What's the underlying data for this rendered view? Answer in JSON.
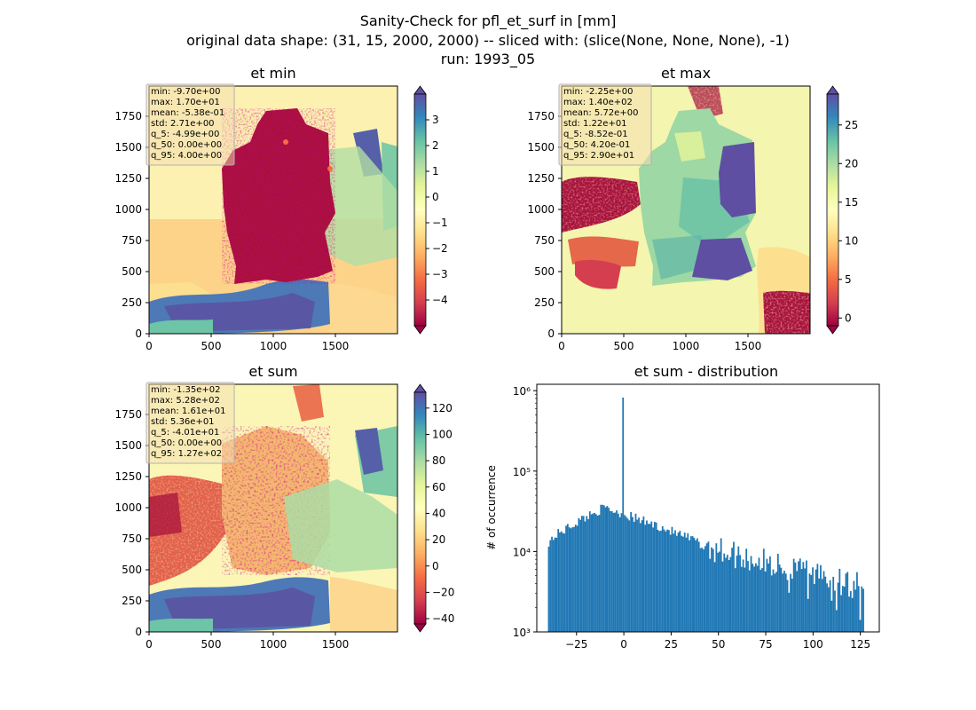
{
  "figure": {
    "suptitle": [
      "Sanity-Check for pfl_et_surf in [mm]",
      "original data shape: (31, 15, 2000, 2000) -- sliced with: (slice(None, None, None), -1)",
      "run: 1993_05"
    ]
  },
  "colormap": {
    "name": "Spectral",
    "stops": [
      "#9e0142",
      "#d53e4f",
      "#f46d43",
      "#fdae61",
      "#fee08b",
      "#ffffbf",
      "#e6f598",
      "#abdda4",
      "#66c2a5",
      "#3288bd",
      "#5e4fa2"
    ]
  },
  "chart_data": [
    {
      "type": "heatmap",
      "title": "et min",
      "xlim": [
        0,
        2000
      ],
      "ylim": [
        0,
        2000
      ],
      "xticks": [
        0,
        500,
        1000,
        1500
      ],
      "yticks": [
        0,
        250,
        500,
        750,
        1000,
        1250,
        1500,
        1750
      ],
      "colorbar": {
        "vmin": -5,
        "vmax": 4,
        "ticks": [
          -4,
          -3,
          -2,
          -1,
          0,
          1,
          2,
          3
        ],
        "extend": "both",
        "colormap": "Spectral"
      },
      "stats": [
        "min: -9.70e+00",
        "max: 1.70e+01",
        "mean: -5.38e-01",
        "std: 2.71e+00",
        "q_5: -4.99e+00",
        "q_50: 0.00e+00",
        "q_95: 4.00e+00"
      ]
    },
    {
      "type": "heatmap",
      "title": "et max",
      "xlim": [
        0,
        2000
      ],
      "ylim": [
        0,
        2000
      ],
      "xticks": [
        0,
        500,
        1000,
        1500
      ],
      "yticks": [
        0,
        250,
        500,
        750,
        1000,
        1250,
        1500,
        1750
      ],
      "colorbar": {
        "vmin": -1,
        "vmax": 29,
        "ticks": [
          0,
          5,
          10,
          15,
          20,
          25
        ],
        "extend": "both",
        "colormap": "Spectral"
      },
      "stats": [
        "min: -2.25e+00",
        "max: 1.40e+02",
        "mean: 5.72e+00",
        "std: 1.22e+01",
        "q_5: -8.52e-01",
        "q_50: 4.20e-01",
        "q_95: 2.90e+01"
      ]
    },
    {
      "type": "heatmap",
      "title": "et sum",
      "xlim": [
        0,
        2000
      ],
      "ylim": [
        0,
        2000
      ],
      "xticks": [
        0,
        500,
        1000,
        1500
      ],
      "yticks": [
        0,
        250,
        500,
        750,
        1000,
        1250,
        1500,
        1750
      ],
      "colorbar": {
        "vmin": -44,
        "vmax": 132,
        "ticks": [
          -40,
          -20,
          0,
          20,
          40,
          60,
          80,
          100,
          120
        ],
        "extend": "both",
        "colormap": "Spectral"
      },
      "stats": [
        "min: -1.35e+02",
        "max: 5.28e+02",
        "mean: 1.61e+01",
        "std: 5.36e+01",
        "q_5: -4.01e+01",
        "q_50: 0.00e+00",
        "q_95: 1.27e+02"
      ]
    },
    {
      "type": "bar",
      "title": "et sum - distribution",
      "ylabel": "# of occurrence",
      "yscale": "log",
      "xlim": [
        -46,
        135
      ],
      "ylim": [
        1000,
        1200000
      ],
      "xticks": [
        -25,
        0,
        25,
        50,
        75,
        100,
        125
      ],
      "yticks": [
        {
          "value": 1000,
          "label": "10³"
        },
        {
          "value": 10000,
          "label": "10⁴"
        },
        {
          "value": 100000,
          "label": "10⁵"
        },
        {
          "value": 1000000,
          "label": "10⁶"
        }
      ],
      "color": "#1f77b4",
      "bin_range": [
        -40.1,
        127
      ],
      "bins": 200,
      "spike": {
        "x": 0,
        "value": 820000
      },
      "profile": [
        {
          "x": -40,
          "value": 13000
        },
        {
          "x": -35,
          "value": 16500
        },
        {
          "x": -30,
          "value": 19500
        },
        {
          "x": -25,
          "value": 23000
        },
        {
          "x": -20,
          "value": 27000
        },
        {
          "x": -15,
          "value": 31000
        },
        {
          "x": -10,
          "value": 35000
        },
        {
          "x": -5,
          "value": 32000
        },
        {
          "x": 0,
          "value": 29000
        },
        {
          "x": 10,
          "value": 24000
        },
        {
          "x": 20,
          "value": 20000
        },
        {
          "x": 30,
          "value": 16000
        },
        {
          "x": 40,
          "value": 13000
        },
        {
          "x": 50,
          "value": 10500
        },
        {
          "x": 60,
          "value": 9000
        },
        {
          "x": 70,
          "value": 7800
        },
        {
          "x": 80,
          "value": 6600
        },
        {
          "x": 90,
          "value": 5800
        },
        {
          "x": 100,
          "value": 5000
        },
        {
          "x": 110,
          "value": 4400
        },
        {
          "x": 120,
          "value": 3900
        },
        {
          "x": 127,
          "value": 3700
        }
      ]
    }
  ]
}
